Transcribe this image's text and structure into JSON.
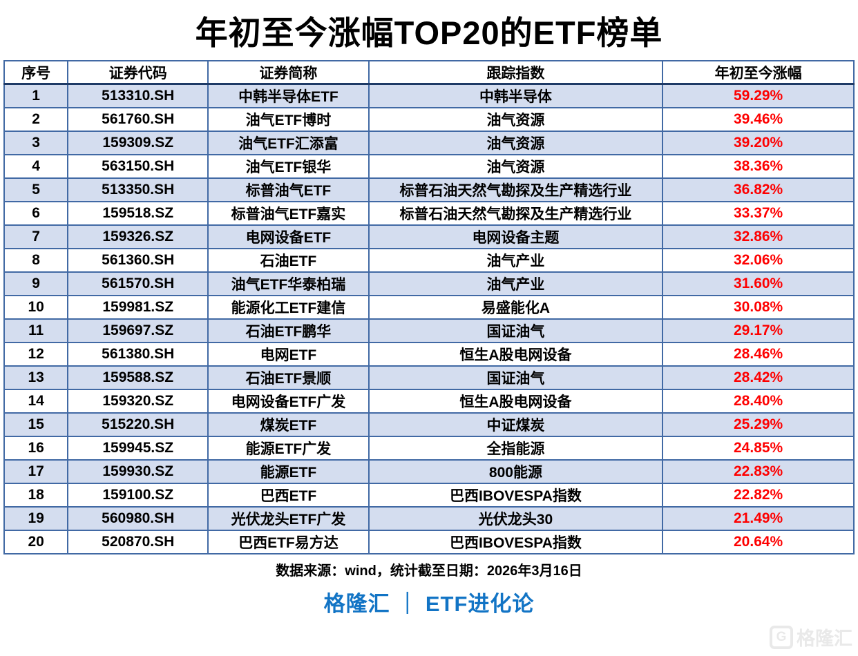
{
  "title": "年初至今涨幅TOP20的ETF榜单",
  "chart_data": {
    "type": "table",
    "title": "年初至今涨幅TOP20的ETF榜单",
    "columns": [
      "序号",
      "证券代码",
      "证券简称",
      "跟踪指数",
      "年初至今涨幅"
    ],
    "rows": [
      [
        "1",
        "513310.SH",
        "中韩半导体ETF",
        "中韩半导体",
        "59.29%"
      ],
      [
        "2",
        "561760.SH",
        "油气ETF博时",
        "油气资源",
        "39.46%"
      ],
      [
        "3",
        "159309.SZ",
        "油气ETF汇添富",
        "油气资源",
        "39.20%"
      ],
      [
        "4",
        "563150.SH",
        "油气ETF银华",
        "油气资源",
        "38.36%"
      ],
      [
        "5",
        "513350.SH",
        "标普油气ETF",
        "标普石油天然气勘探及生产精选行业",
        "36.82%"
      ],
      [
        "6",
        "159518.SZ",
        "标普油气ETF嘉实",
        "标普石油天然气勘探及生产精选行业",
        "33.37%"
      ],
      [
        "7",
        "159326.SZ",
        "电网设备ETF",
        "电网设备主题",
        "32.86%"
      ],
      [
        "8",
        "561360.SH",
        "石油ETF",
        "油气产业",
        "32.06%"
      ],
      [
        "9",
        "561570.SH",
        "油气ETF华泰柏瑞",
        "油气产业",
        "31.60%"
      ],
      [
        "10",
        "159981.SZ",
        "能源化工ETF建信",
        "易盛能化A",
        "30.08%"
      ],
      [
        "11",
        "159697.SZ",
        "石油ETF鹏华",
        "国证油气",
        "29.17%"
      ],
      [
        "12",
        "561380.SH",
        "电网ETF",
        "恒生A股电网设备",
        "28.46%"
      ],
      [
        "13",
        "159588.SZ",
        "石油ETF景顺",
        "国证油气",
        "28.42%"
      ],
      [
        "14",
        "159320.SZ",
        "电网设备ETF广发",
        "恒生A股电网设备",
        "28.40%"
      ],
      [
        "15",
        "515220.SH",
        "煤炭ETF",
        "中证煤炭",
        "25.29%"
      ],
      [
        "16",
        "159945.SZ",
        "能源ETF广发",
        "全指能源",
        "24.85%"
      ],
      [
        "17",
        "159930.SZ",
        "能源ETF",
        "800能源",
        "22.83%"
      ],
      [
        "18",
        "159100.SZ",
        "巴西ETF",
        "巴西IBOVESPA指数",
        "22.82%"
      ],
      [
        "19",
        "560980.SH",
        "光伏龙头ETF广发",
        "光伏龙头30",
        "21.49%"
      ],
      [
        "20",
        "520870.SH",
        "巴西ETF易方达",
        "巴西IBOVESPA指数",
        "20.64%"
      ]
    ],
    "layout": {
      "gain_column_color": "#fe0000",
      "shaded_row_fill": "#d4ddef",
      "grid_color": "#4169a4",
      "header_underline_color": "#1e3a66"
    }
  },
  "footer": {
    "source": "数据来源：wind，统计截至日期：2026年3月16日",
    "brand": "格隆汇 ｜ ETF进化论",
    "watermark": "格隆汇"
  },
  "colors": {
    "brand_blue": "#1274c5",
    "gain_red": "#fe0000",
    "row_shade": "#d4ddef",
    "grid_blue": "#4169a4",
    "header_line_navy": "#1e3a66"
  }
}
